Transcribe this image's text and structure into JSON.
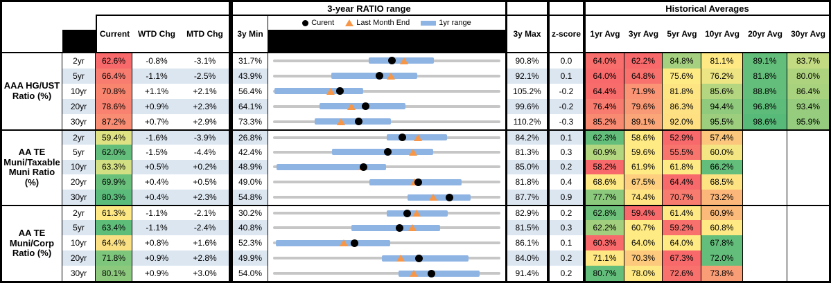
{
  "sections": {
    "chart_title": "3-year RATIO range",
    "averages_title": "Historical Averages"
  },
  "columns": {
    "current": "Current",
    "wtd": "WTD Chg",
    "mtd": "MTD Chg",
    "min": "3y Min",
    "max": "3y Max",
    "z": "z-score",
    "avgs": [
      "1yr Avg",
      "3yr Avg",
      "5yr Avg",
      "10yr Avg",
      "20yr Avg",
      "30yr Avg"
    ]
  },
  "legend": {
    "current": "Curent",
    "last_month": "Last Month End",
    "range": "1yr range"
  },
  "colors": {
    "stripe": "#DCE6F1",
    "track": "#C6C6C6",
    "bar": "#8EB4E3",
    "triangle": "#F79646",
    "dot": "#000000",
    "scale_red": "#F8696B",
    "scale_yellow": "#FFEB84",
    "scale_green": "#63BE7B"
  },
  "chart_data": {
    "type": "table",
    "groups": [
      {
        "label": "AAA HG/UST\nRatio (%)",
        "rows": [
          {
            "tenor": "2yr",
            "current": "62.6%",
            "current_color": "#F8696B",
            "wtd": "-0.8%",
            "mtd": "-3.1%",
            "min": "31.7%",
            "max": "90.8%",
            "z": "0.0",
            "range": {
              "min": 31.7,
              "max": 90.8,
              "bar_low": 56.6,
              "bar_high": 73.5,
              "current": 62.6,
              "last_month": 65.7
            },
            "avgs": [
              {
                "v": "64.0%",
                "c": "#F86E6C"
              },
              {
                "v": "62.2%",
                "c": "#F8696B"
              },
              {
                "v": "84.8%",
                "c": "#A5D07F"
              },
              {
                "v": "81.1%",
                "c": "#FFE984"
              },
              {
                "v": "89.1%",
                "c": "#63BE7B"
              },
              {
                "v": "83.7%",
                "c": "#C2DA81"
              }
            ]
          },
          {
            "tenor": "5yr",
            "current": "66.4%",
            "current_color": "#F87C70",
            "wtd": "-1.1%",
            "mtd": "-2.5%",
            "min": "43.9%",
            "max": "92.1%",
            "z": "0.1",
            "range": {
              "min": 43.9,
              "max": 92.1,
              "bar_low": 56.2,
              "bar_high": 74.4,
              "current": 66.4,
              "last_month": 68.9
            },
            "avgs": [
              {
                "v": "64.0%",
                "c": "#F8696B"
              },
              {
                "v": "64.8%",
                "c": "#F8716D"
              },
              {
                "v": "75.6%",
                "c": "#FFEB84"
              },
              {
                "v": "76.2%",
                "c": "#EDE583"
              },
              {
                "v": "81.8%",
                "c": "#63BE7B"
              },
              {
                "v": "80.0%",
                "c": "#AED37F"
              }
            ]
          },
          {
            "tenor": "10yr",
            "current": "70.8%",
            "current_color": "#F9856F",
            "wtd": "+1.1%",
            "mtd": "+2.1%",
            "min": "56.4%",
            "max": "105.2%",
            "z": "-0.2",
            "range": {
              "min": 56.4,
              "max": 105.2,
              "bar_low": 56.7,
              "bar_high": 75.8,
              "current": 70.8,
              "last_month": 68.7
            },
            "avgs": [
              {
                "v": "64.4%",
                "c": "#F86C6C"
              },
              {
                "v": "71.9%",
                "c": "#FA9475"
              },
              {
                "v": "81.8%",
                "c": "#FEE583"
              },
              {
                "v": "85.6%",
                "c": "#B5D680"
              },
              {
                "v": "88.8%",
                "c": "#63BE7B"
              },
              {
                "v": "86.4%",
                "c": "#A9D27F"
              }
            ]
          },
          {
            "tenor": "20yr",
            "current": "78.6%",
            "current_color": "#F8826F",
            "wtd": "+0.9%",
            "mtd": "+2.3%",
            "min": "64.1%",
            "max": "99.6%",
            "z": "-0.2",
            "range": {
              "min": 64.1,
              "max": 99.6,
              "bar_low": 71.4,
              "bar_high": 84.8,
              "current": 78.6,
              "last_month": 76.3
            },
            "avgs": [
              {
                "v": "76.4%",
                "c": "#F87B6F"
              },
              {
                "v": "79.6%",
                "c": "#F99A76"
              },
              {
                "v": "86.3%",
                "c": "#FEE183"
              },
              {
                "v": "94.4%",
                "c": "#90CB7D"
              },
              {
                "v": "96.8%",
                "c": "#5DBC7A"
              },
              {
                "v": "93.4%",
                "c": "#97CC7E"
              }
            ]
          },
          {
            "tenor": "30yr",
            "current": "87.2%",
            "current_color": "#F98D73",
            "wtd": "+0.7%",
            "mtd": "+2.9%",
            "min": "73.3%",
            "max": "110.2%",
            "z": "-0.3",
            "range": {
              "min": 73.3,
              "max": 110.2,
              "bar_low": 80.1,
              "bar_high": 92.4,
              "current": 87.2,
              "last_month": 84.3
            },
            "avgs": [
              {
                "v": "85.2%",
                "c": "#F88A72"
              },
              {
                "v": "89.1%",
                "c": "#FAA678"
              },
              {
                "v": "92.0%",
                "c": "#FEDF82"
              },
              {
                "v": "95.5%",
                "c": "#9CCE7E"
              },
              {
                "v": "98.6%",
                "c": "#57BA79"
              },
              {
                "v": "95.9%",
                "c": "#95CC7E"
              }
            ]
          }
        ]
      },
      {
        "label": "AA TE\nMuni/Taxable\nMuni Ratio\n(%)",
        "rows": [
          {
            "tenor": "2yr",
            "current": "59.4%",
            "current_color": "#DFE283",
            "wtd": "-1.6%",
            "mtd": "-3.9%",
            "min": "26.8%",
            "max": "84.2%",
            "z": "0.1",
            "range": {
              "min": 26.8,
              "max": 84.2,
              "bar_low": 55.5,
              "bar_high": 70.7,
              "current": 59.4,
              "last_month": 63.3
            },
            "avgs": [
              {
                "v": "62.3%",
                "c": "#63BE7B"
              },
              {
                "v": "58.6%",
                "c": "#FFEB84"
              },
              {
                "v": "52.9%",
                "c": "#F8696B"
              },
              {
                "v": "57.4%",
                "c": "#FCC67C"
              },
              {
                "v": "",
                "c": ""
              },
              {
                "v": "",
                "c": ""
              }
            ]
          },
          {
            "tenor": "5yr",
            "current": "62.0%",
            "current_color": "#63BE7B",
            "wtd": "-1.5%",
            "mtd": "-4.4%",
            "min": "42.4%",
            "max": "81.3%",
            "z": "0.3",
            "range": {
              "min": 42.4,
              "max": 81.3,
              "bar_low": 52.5,
              "bar_high": 69.8,
              "current": 62.0,
              "last_month": 66.4
            },
            "avgs": [
              {
                "v": "60.9%",
                "c": "#B2D580"
              },
              {
                "v": "59.6%",
                "c": "#FFEB84"
              },
              {
                "v": "55.5%",
                "c": "#F8756E"
              },
              {
                "v": "60.0%",
                "c": "#F4E783"
              },
              {
                "v": "",
                "c": ""
              },
              {
                "v": "",
                "c": ""
              }
            ]
          },
          {
            "tenor": "10yr",
            "current": "63.3%",
            "current_color": "#D2DF82",
            "wtd": "+0.5%",
            "mtd": "+0.2%",
            "min": "48.9%",
            "max": "85.0%",
            "z": "0.2",
            "range": {
              "min": 48.9,
              "max": 85.0,
              "bar_low": 49.4,
              "bar_high": 66.8,
              "current": 63.3,
              "last_month": 63.1
            },
            "avgs": [
              {
                "v": "58.2%",
                "c": "#F8696B"
              },
              {
                "v": "61.9%",
                "c": "#FFEB84"
              },
              {
                "v": "61.8%",
                "c": "#FEEA84"
              },
              {
                "v": "66.2%",
                "c": "#63BE7B"
              },
              {
                "v": "",
                "c": ""
              },
              {
                "v": "",
                "c": ""
              }
            ]
          },
          {
            "tenor": "20yr",
            "current": "69.9%",
            "current_color": "#68C07B",
            "wtd": "+0.4%",
            "mtd": "+0.5%",
            "min": "49.0%",
            "max": "81.8%",
            "z": "0.4",
            "range": {
              "min": 49.0,
              "max": 81.8,
              "bar_low": 62.9,
              "bar_high": 76.2,
              "current": 69.9,
              "last_month": 69.4
            },
            "avgs": [
              {
                "v": "68.6%",
                "c": "#FEE984"
              },
              {
                "v": "67.5%",
                "c": "#FDCF7E"
              },
              {
                "v": "64.4%",
                "c": "#F8696B"
              },
              {
                "v": "68.5%",
                "c": "#FEE383"
              },
              {
                "v": "",
                "c": ""
              },
              {
                "v": "",
                "c": ""
              }
            ]
          },
          {
            "tenor": "30yr",
            "current": "80.3%",
            "current_color": "#5ABB7A",
            "wtd": "+0.4%",
            "mtd": "+2.3%",
            "min": "54.8%",
            "max": "87.7%",
            "z": "0.9",
            "range": {
              "min": 54.8,
              "max": 87.7,
              "bar_low": 74.3,
              "bar_high": 83.4,
              "current": 80.3,
              "last_month": 78.0
            },
            "avgs": [
              {
                "v": "77.7%",
                "c": "#8BC97D"
              },
              {
                "v": "74.4%",
                "c": "#FFE483"
              },
              {
                "v": "70.7%",
                "c": "#F87B6F"
              },
              {
                "v": "73.2%",
                "c": "#FBB77A"
              },
              {
                "v": "",
                "c": ""
              },
              {
                "v": "",
                "c": ""
              }
            ]
          }
        ]
      },
      {
        "label": "AA TE\nMuni/Corp\nRatio (%)",
        "rows": [
          {
            "tenor": "2yr",
            "current": "61.3%",
            "current_color": "#FEE884",
            "wtd": "-1.1%",
            "mtd": "-2.1%",
            "min": "30.2%",
            "max": "82.9%",
            "z": "0.2",
            "range": {
              "min": 30.2,
              "max": 82.9,
              "bar_low": 56.6,
              "bar_high": 70.7,
              "current": 61.3,
              "last_month": 63.4
            },
            "avgs": [
              {
                "v": "62.8%",
                "c": "#6EC17B"
              },
              {
                "v": "59.4%",
                "c": "#F8696B"
              },
              {
                "v": "61.4%",
                "c": "#FFE984"
              },
              {
                "v": "60.9%",
                "c": "#FBB97A"
              },
              {
                "v": "",
                "c": ""
              },
              {
                "v": "",
                "c": ""
              }
            ]
          },
          {
            "tenor": "5yr",
            "current": "63.4%",
            "current_color": "#5FBD7A",
            "wtd": "-1.1%",
            "mtd": "-2.4%",
            "min": "40.8%",
            "max": "81.5%",
            "z": "0.3",
            "range": {
              "min": 40.8,
              "max": 81.5,
              "bar_low": 54.8,
              "bar_high": 70.7,
              "current": 63.4,
              "last_month": 65.8
            },
            "avgs": [
              {
                "v": "62.2%",
                "c": "#A2CF7E"
              },
              {
                "v": "60.7%",
                "c": "#FFEB84"
              },
              {
                "v": "59.2%",
                "c": "#F8716D"
              },
              {
                "v": "60.8%",
                "c": "#FEE984"
              },
              {
                "v": "",
                "c": ""
              },
              {
                "v": "",
                "c": ""
              }
            ]
          },
          {
            "tenor": "10yr",
            "current": "64.4%",
            "current_color": "#FBE083",
            "wtd": "+0.8%",
            "mtd": "+1.6%",
            "min": "52.3%",
            "max": "86.1%",
            "z": "0.1",
            "range": {
              "min": 52.3,
              "max": 86.1,
              "bar_low": 52.7,
              "bar_high": 69.7,
              "current": 64.4,
              "last_month": 62.8
            },
            "avgs": [
              {
                "v": "60.3%",
                "c": "#F8696B"
              },
              {
                "v": "64.0%",
                "c": "#FFEB84"
              },
              {
                "v": "64.0%",
                "c": "#FFEB84"
              },
              {
                "v": "67.8%",
                "c": "#63BE7B"
              },
              {
                "v": "",
                "c": ""
              },
              {
                "v": "",
                "c": ""
              }
            ]
          },
          {
            "tenor": "20yr",
            "current": "71.8%",
            "current_color": "#7EC67C",
            "wtd": "+0.9%",
            "mtd": "+2.8%",
            "min": "49.9%",
            "max": "84.0%",
            "z": "0.2",
            "range": {
              "min": 49.9,
              "max": 84.0,
              "bar_low": 66.2,
              "bar_high": 79.2,
              "current": 71.8,
              "last_month": 69.0
            },
            "avgs": [
              {
                "v": "71.1%",
                "c": "#FEE883"
              },
              {
                "v": "70.3%",
                "c": "#FCC97D"
              },
              {
                "v": "67.3%",
                "c": "#F8696B"
              },
              {
                "v": "72.0%",
                "c": "#63BE7B"
              },
              {
                "v": "",
                "c": ""
              },
              {
                "v": "",
                "c": ""
              }
            ]
          },
          {
            "tenor": "30yr",
            "current": "80.1%",
            "current_color": "#8CC97D",
            "wtd": "+0.9%",
            "mtd": "+3.0%",
            "min": "54.0%",
            "max": "91.4%",
            "z": "0.2",
            "range": {
              "min": 54.0,
              "max": 91.4,
              "bar_low": 74.6,
              "bar_high": 88.0,
              "current": 80.1,
              "last_month": 77.1
            },
            "avgs": [
              {
                "v": "80.7%",
                "c": "#63BE7B"
              },
              {
                "v": "78.0%",
                "c": "#FEE883"
              },
              {
                "v": "72.6%",
                "c": "#F8716D"
              },
              {
                "v": "73.8%",
                "c": "#F99D76"
              },
              {
                "v": "",
                "c": ""
              },
              {
                "v": "",
                "c": ""
              }
            ]
          }
        ]
      }
    ]
  }
}
